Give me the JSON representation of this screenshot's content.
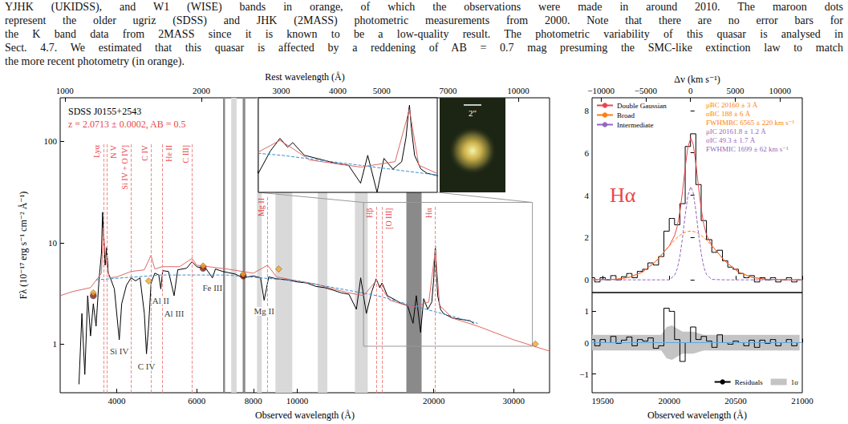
{
  "caption": [
    "YJHK (UKIDSS), and W1 (WISE) bands in orange, of which the observations were made in around 2010. The maroon dots",
    "represent the older ugriz (SDSS) and JHK (2MASS) photometric measurements from 2000. Note that there are no error bars for",
    "the K band data from 2MASS since it is known to be a low-quality result. The photometric variability of this quasar is analysed in",
    "Sect. 4.7. We estimated that this quasar is affected by a reddening of AB = 0.7 mag presuming the SMC-like extinction law to match",
    "the more recent photometry (in orange)."
  ],
  "chart_data": [
    {
      "type": "line",
      "log": true,
      "title": "SDSS J0155+2543",
      "subtitle": "z = 2.0713 ± 0.0002, AB = 0.5",
      "xlabel": "Observed wavelength (Å)",
      "ylabel": "Fλ (10⁻¹⁷ erg s⁻¹ cm⁻² Å⁻¹)",
      "x2label": "Rest wavelength (Å)",
      "xlim": [
        3000,
        36000
      ],
      "xticks": [
        4000,
        6000,
        8000,
        10000,
        20000,
        30000
      ],
      "ylim": [
        0.33,
        270
      ],
      "yticks": [
        1,
        10,
        100
      ],
      "x2lim": [
        976.8,
        11721.4
      ],
      "x2ticks": [
        1000,
        2000,
        3000,
        4000,
        5000,
        7000,
        10000
      ],
      "series": [
        {
          "color": "#000000",
          "x": [
            3300,
            3350,
            3400,
            3450,
            3500,
            3550,
            3600,
            3650,
            3700,
            3720,
            3740,
            3770,
            3800,
            3830,
            3870,
            3950,
            4050,
            4100,
            4200,
            4300,
            4400,
            4500,
            4600,
            4650,
            4700,
            4760,
            4850,
            4950,
            5000,
            5050,
            5200,
            5350,
            5450,
            5700,
            5860,
            6000,
            6300,
            6500,
            6600,
            6850,
            7000,
            7300,
            7600,
            8000,
            8300,
            8450,
            8550,
            8650,
            9000,
            9500,
            10000,
            10500,
            11000,
            11500,
            12000,
            12500,
            13000,
            13500,
            13800,
            14200,
            14600,
            14930,
            15200,
            15378,
            15800,
            16500,
            17000,
            17500,
            18000,
            18300,
            18700,
            19000,
            19400,
            19800,
            20000,
            20100,
            20160,
            20250,
            20400,
            20700,
            21000,
            21500,
            22000,
            23000,
            24000,
            24500
          ],
          "values": [
            0.4,
            2.0,
            0.5,
            3.0,
            1.2,
            2.5,
            1.5,
            4.0,
            8.0,
            20,
            12,
            6,
            9,
            5,
            4.5,
            3.5,
            1.1,
            2.5,
            3.8,
            4.5,
            4.2,
            4.5,
            2.0,
            0.8,
            1.5,
            4.0,
            5.0,
            4.8,
            3.5,
            5.3,
            5.2,
            3.0,
            5.4,
            5.6,
            6.5,
            5.8,
            5.5,
            4.5,
            5.5,
            5.2,
            5.1,
            4.9,
            4.5,
            4.7,
            4.5,
            2.7,
            3.5,
            4.6,
            4.4,
            4.3,
            4.1,
            4.0,
            3.7,
            3.6,
            3.4,
            3.2,
            3.1,
            2.2,
            4.5,
            2.0,
            3.3,
            4.4,
            3.6,
            4.0,
            3.0,
            2.7,
            2.5,
            2.4,
            1.6,
            3.0,
            1.3,
            2.8,
            2.2,
            2.6,
            4.5,
            7.5,
            9.3,
            5.5,
            3.0,
            2.2,
            2.0,
            1.9,
            1.8,
            1.75,
            1.7,
            1.6
          ]
        },
        {
          "color": "#e06666",
          "x": [
            3000,
            3200,
            3500,
            3700,
            3735,
            3780,
            3850,
            4000,
            4300,
            4600,
            4757,
            4850,
            5037,
            5500,
            5863,
            6000,
            7000,
            8000,
            8600,
            9000,
            10000,
            11000,
            12000,
            13000,
            14000,
            14930,
            15378,
            16000,
            18000,
            19500,
            20157,
            20600,
            22000,
            25000,
            30000,
            36000
          ],
          "values": [
            3.0,
            3.3,
            3.6,
            5.0,
            14,
            7.0,
            4.5,
            4.6,
            5.2,
            5.4,
            7.5,
            5.5,
            5.8,
            5.8,
            7.0,
            6.0,
            5.5,
            5.0,
            6.0,
            4.6,
            4.2,
            3.9,
            3.5,
            3.2,
            3.0,
            4.2,
            3.5,
            2.7,
            2.3,
            2.6,
            8.5,
            2.4,
            1.8,
            1.5,
            1.1,
            0.85
          ]
        },
        {
          "color": "#3a8fd0",
          "line_style": "dashed",
          "x": [
            3600,
            5000,
            7000,
            10000,
            15000,
            20000,
            25000
          ],
          "values": [
            4.3,
            4.8,
            4.8,
            4.2,
            3.0,
            2.1,
            1.6
          ]
        },
        {
          "type": "scatter",
          "color": "#8b1a1a",
          "marker": "circle",
          "x": [
            3550,
            6200,
            7600
          ],
          "values": [
            3.0,
            5.6,
            4.7
          ]
        },
        {
          "type": "scatter",
          "color": "#f5a623",
          "marker": "diamond",
          "x": [
            3550,
            4700,
            6200,
            7600,
            9100,
            33500
          ],
          "values": [
            3.2,
            4.2,
            5.9,
            4.9,
            5.5,
            1.0
          ]
        }
      ],
      "emission_lines": [
        {
          "label": "Lyα",
          "x": 3735
        },
        {
          "label": "N V",
          "x": 3808
        },
        {
          "label": "Si IV + O IV]",
          "x": 4300
        },
        {
          "label": "C IV",
          "x": 4757
        },
        {
          "label": "He II",
          "x": 5037
        },
        {
          "label": "C III]",
          "x": 5863
        },
        {
          "label": "Mg II",
          "x": 8600
        },
        {
          "label": "Hβ",
          "x": 14930
        },
        {
          "label": "[O III]",
          "x": 15378
        },
        {
          "label": "Hα",
          "x": 20157
        }
      ],
      "absorption_labels": [
        {
          "text": "Si IV",
          "x": 4050,
          "y": 0.85
        },
        {
          "text": "C IV",
          "x": 4650,
          "y": 0.6
        },
        {
          "text": "Al II",
          "x": 5000,
          "y": 2.7
        },
        {
          "text": "Al III",
          "x": 5350,
          "y": 2.0
        },
        {
          "text": "Fe III",
          "x": 6500,
          "y": 3.6
        },
        {
          "text": "Mg II",
          "x": 8450,
          "y": 2.1
        }
      ],
      "bands": [
        {
          "x": [
            7150,
            7350
          ],
          "color": "#d9d9d9"
        },
        {
          "x": [
            8150,
            8350
          ],
          "color": "#d9d9d9"
        },
        {
          "x": [
            8950,
            9750
          ],
          "color": "#d9d9d9"
        },
        {
          "x": [
            11100,
            11650
          ],
          "color": "#d9d9d9"
        },
        {
          "x": [
            13400,
            14300
          ],
          "color": "#d9d9d9"
        },
        {
          "x": [
            6860,
            6930
          ],
          "color": "#8a8a8a"
        },
        {
          "x": [
            7580,
            7680
          ],
          "color": "#8a8a8a"
        },
        {
          "x": [
            17400,
            18800
          ],
          "color": "#8a8a8a"
        }
      ],
      "zoom_box": {
        "x": [
          14000,
          33000
        ],
        "y": [
          0.95,
          25
        ]
      },
      "inset": {
        "xlim": [
          14200,
          21500
        ],
        "ylim": [
          1.3,
          11
        ],
        "tick_labels": false
      },
      "image": {
        "scale_bar_label": "2″"
      }
    },
    {
      "type": "line",
      "title": "Hα",
      "xlim": [
        19420,
        21000
      ],
      "ylim": [
        -0.6,
        8.6
      ],
      "yticks": [
        0,
        2,
        4,
        6,
        8
      ],
      "x2label": "Δv (km s⁻¹)",
      "x2lim": [
        -11004,
        12491
      ],
      "x2ticks": [
        {
          "value": -10000,
          "label": "−10000"
        },
        {
          "value": -5000,
          "label": "−5000"
        },
        0,
        5000,
        10000
      ],
      "legend": "upper left",
      "series": [
        {
          "color": "#000000",
          "line_style": "steps",
          "x": [
            19420,
            19460,
            19500,
            19540,
            19580,
            19620,
            19660,
            19700,
            19740,
            19780,
            19820,
            19860,
            19900,
            19940,
            19980,
            20020,
            20060,
            20100,
            20140,
            20180,
            20220,
            20260,
            20300,
            20340,
            20380,
            20420,
            20460,
            20500,
            20540,
            20580,
            20620,
            20660,
            20700,
            20740,
            20780,
            20820,
            20860,
            20900,
            20940,
            20980
          ],
          "values": [
            0.1,
            -0.1,
            0.1,
            0.0,
            0.2,
            0.0,
            0.15,
            0.3,
            0.1,
            0.4,
            0.5,
            0.8,
            0.7,
            1.1,
            2.3,
            2.9,
            2.6,
            3.6,
            6.3,
            6.9,
            4.5,
            2.8,
            1.9,
            1.3,
            1.4,
            0.9,
            0.6,
            0.5,
            0.3,
            0.1,
            0.2,
            -0.1,
            0.1,
            0.0,
            0.1,
            -0.1,
            0.0,
            0.1,
            -0.1,
            0.0
          ]
        },
        {
          "name": "Double Gaussian",
          "color": "#e8474b",
          "x": [
            19400,
            19600,
            19700,
            19800,
            19900,
            20000,
            20040,
            20060,
            20080,
            20100,
            20120,
            20140,
            20162,
            20180,
            20200,
            20220,
            20240,
            20260,
            20280,
            20320,
            20420,
            20520,
            20620,
            20720,
            20900,
            21000
          ],
          "values": [
            0.0,
            0.03,
            0.12,
            0.37,
            0.88,
            1.6,
            2.09,
            2.52,
            3.2,
            4.19,
            5.31,
            6.27,
            6.7,
            6.41,
            5.52,
            4.39,
            3.36,
            2.61,
            2.13,
            1.62,
            0.88,
            0.37,
            0.12,
            0.03,
            0.0,
            0.0
          ]
        },
        {
          "name": "Broad",
          "color": "#ff7f0e",
          "line_style": "dashed",
          "x": [
            19400,
            19600,
            19700,
            19800,
            19900,
            20000,
            20040,
            20060,
            20080,
            20100,
            20120,
            20140,
            20162,
            20180,
            20200,
            20220,
            20240,
            20260,
            20280,
            20320,
            20420,
            20520,
            20620,
            20720,
            20900,
            21000
          ],
          "values": [
            0.0,
            0.03,
            0.12,
            0.37,
            0.88,
            1.6,
            1.88,
            2.0,
            2.1,
            2.19,
            2.25,
            2.29,
            2.3,
            2.29,
            2.25,
            2.19,
            2.1,
            2.0,
            1.88,
            1.6,
            0.88,
            0.37,
            0.12,
            0.03,
            0.0,
            0.0
          ]
        },
        {
          "name": "Intermediate",
          "color": "#9467bd",
          "line_style": "dashed",
          "x": [
            19400,
            19600,
            19700,
            19800,
            19900,
            20000,
            20040,
            20060,
            20080,
            20100,
            20120,
            20140,
            20162,
            20180,
            20200,
            20220,
            20240,
            20260,
            20280,
            20320,
            20420,
            20520,
            20620,
            20720,
            20900,
            21000
          ],
          "values": [
            0.0,
            0.0,
            0.0,
            0.0,
            0.0,
            0.0,
            0.21,
            0.52,
            1.1,
            2.0,
            3.06,
            3.98,
            4.4,
            4.12,
            3.27,
            2.2,
            1.26,
            0.61,
            0.25,
            0.02,
            0.0,
            0.0,
            0.0,
            0.0,
            0.0,
            0.0
          ]
        }
      ],
      "annotations": [
        {
          "text": "μBC 20160 ± 3 Å",
          "color": "#ff7f0e"
        },
        {
          "text": "σBC 188 ± 6 Å",
          "color": "#ff7f0e"
        },
        {
          "text": "FWHMBC 6565 ± 220 km s⁻¹",
          "color": "#ff7f0e"
        },
        {
          "text": "μIC 20161.8 ± 1.2 Å",
          "color": "#9467bd"
        },
        {
          "text": "σIC 49.3 ± 1.7 Å",
          "color": "#9467bd"
        },
        {
          "text": "FWHMIC 1699 ± 62 km s⁻¹",
          "color": "#9467bd"
        }
      ]
    },
    {
      "type": "line",
      "xlabel": "Observed wavelength (Å)",
      "xlim": [
        19420,
        21000
      ],
      "xticks": [
        19500,
        20000,
        20500,
        21000
      ],
      "ylim": [
        -1.6,
        1.6
      ],
      "yticks": [
        {
          "value": -1,
          "label": "−1"
        },
        0,
        1
      ],
      "legend": "lower right",
      "series": [
        {
          "name": "Residuals",
          "color": "#000000",
          "line_style": "steps",
          "x": [
            19420,
            19460,
            19500,
            19540,
            19580,
            19620,
            19660,
            19700,
            19740,
            19780,
            19820,
            19860,
            19900,
            19940,
            19980,
            20020,
            20060,
            20100,
            20140,
            20180,
            20220,
            20260,
            20300,
            20340,
            20380,
            20420,
            20460,
            20500,
            20540,
            20580,
            20620,
            20660,
            20700,
            20740,
            20780,
            20820,
            20860,
            20900,
            20940,
            20980
          ],
          "values": [
            0.1,
            -0.1,
            0.1,
            0.0,
            0.2,
            -0.02,
            0.08,
            0.18,
            -0.1,
            0.1,
            0.05,
            0.15,
            -0.18,
            -0.1,
            1.1,
            1.0,
            0.1,
            -0.6,
            0.0,
            0.5,
            0.1,
            0.2,
            0.05,
            -0.15,
            0.25,
            0.0,
            -0.05,
            0.05,
            0.0,
            -0.1,
            0.08,
            -0.15,
            0.08,
            -0.02,
            0.1,
            -0.1,
            0.0,
            0.1,
            -0.1,
            0.0
          ]
        },
        {
          "name": "1σ",
          "type": "band",
          "color": "#c4c4c4",
          "x": [
            19420,
            19460,
            19500,
            19540,
            19580,
            19620,
            19660,
            19700,
            19740,
            19780,
            19820,
            19860,
            19900,
            19940,
            19980,
            20020,
            20060,
            20100,
            20140,
            20180,
            20220,
            20260,
            20300,
            20340,
            20380,
            20420,
            20460,
            20500,
            20540,
            20580,
            20620,
            20660,
            20700,
            20740,
            20780,
            20820,
            20860,
            20900,
            20940,
            20980
          ],
          "values": [
            0.25,
            0.25,
            0.25,
            0.25,
            0.25,
            0.25,
            0.25,
            0.25,
            0.25,
            0.25,
            0.25,
            0.25,
            0.25,
            0.25,
            0.5,
            0.55,
            0.45,
            0.35,
            0.35,
            0.35,
            0.3,
            0.25,
            0.25,
            0.25,
            0.25,
            0.25,
            0.25,
            0.25,
            0.25,
            0.25,
            0.25,
            0.25,
            0.25,
            0.25,
            0.25,
            0.25,
            0.25,
            0.25,
            0.25,
            0.25
          ]
        },
        {
          "type": "hline",
          "color": "#5aa9e6",
          "values": [
            0
          ]
        }
      ]
    }
  ]
}
